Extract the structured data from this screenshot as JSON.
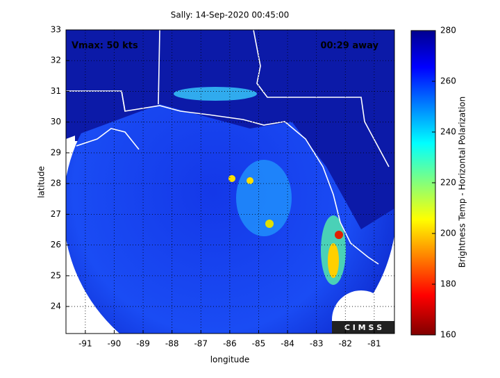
{
  "chart_data": {
    "type": "map",
    "title": "Sally: 14-Sep-2020 00:45:00",
    "x_label": "longitude",
    "y_label": "latitude",
    "xlim": [
      -91.67,
      -80.3
    ],
    "ylim": [
      23.12,
      33
    ],
    "xticks": [
      -91,
      -90,
      -89,
      -88,
      -87,
      -86,
      -85,
      -84,
      -83,
      -82,
      -81
    ],
    "yticks": [
      24,
      25,
      26,
      27,
      28,
      29,
      30,
      31,
      32,
      33
    ],
    "grid": true,
    "annotations": [
      "Vmax: 50 kts",
      "00:29 away",
      "C I M S S"
    ],
    "colorbar": {
      "label": "Brightness Temp - Horizontal Polarization",
      "lim": [
        160,
        280
      ],
      "ticks": [
        160,
        180,
        200,
        220,
        240,
        260,
        280
      ]
    }
  }
}
